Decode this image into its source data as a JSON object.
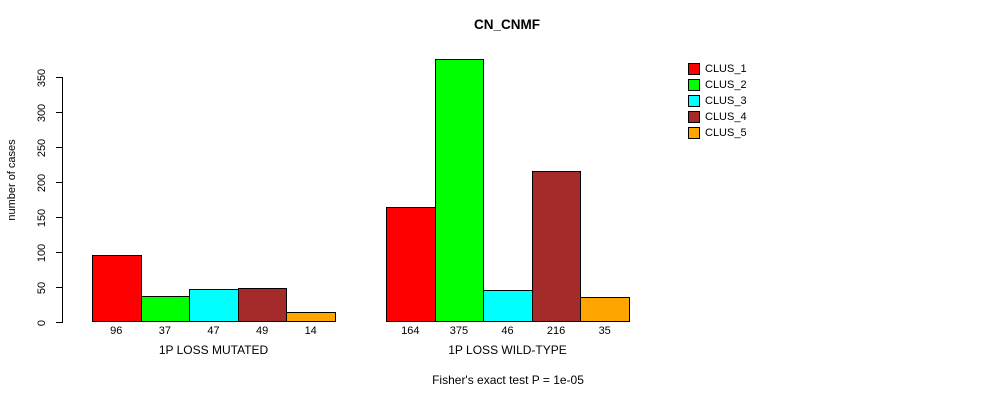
{
  "title": "CN_CNMF",
  "footer": "Fisher's exact test P = 1e-05",
  "chart_data": {
    "type": "bar",
    "title": "CN_CNMF",
    "ylabel": "number of cases",
    "xlabel": "",
    "ylim": [
      0,
      350
    ],
    "yticks": [
      0,
      50,
      100,
      150,
      200,
      250,
      300,
      350
    ],
    "grid": false,
    "legend_position": "top-right",
    "categories": [
      "1P LOSS MUTATED",
      "1P LOSS WILD-TYPE"
    ],
    "series": [
      {
        "name": "CLUS_1",
        "color": "#FF0000",
        "values": [
          96,
          164
        ]
      },
      {
        "name": "CLUS_2",
        "color": "#00FF00",
        "values": [
          37,
          375
        ]
      },
      {
        "name": "CLUS_3",
        "color": "#00FFFF",
        "values": [
          47,
          46
        ]
      },
      {
        "name": "CLUS_4",
        "color": "#A52A2A",
        "values": [
          49,
          216
        ]
      },
      {
        "name": "CLUS_5",
        "color": "#FFA500",
        "values": [
          14,
          35
        ]
      }
    ],
    "annotation": "Fisher's exact test P = 1e-05"
  }
}
